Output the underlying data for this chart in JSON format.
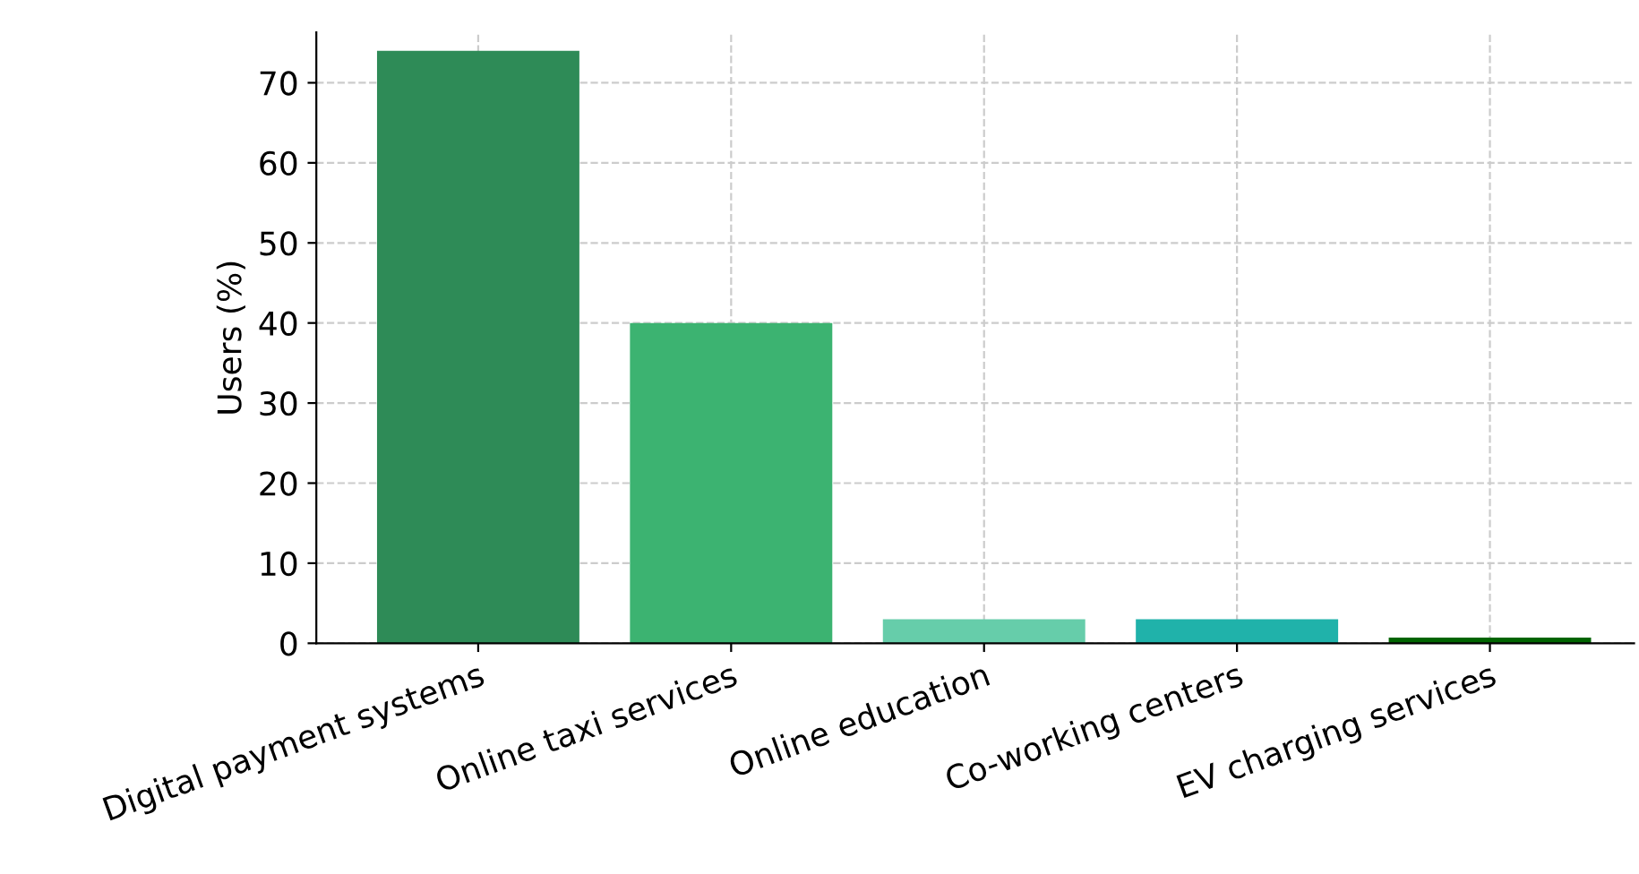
{
  "chart_data": {
    "type": "bar",
    "ylabel": "Users (%)",
    "categories": [
      "Digital payment systems",
      "Online taxi services",
      "Online education",
      "Co-working centers",
      "EV charging services"
    ],
    "values": [
      74,
      40,
      3,
      3,
      0.7
    ],
    "colors": [
      "#2e8b57",
      "#3cb371",
      "#66cdaa",
      "#20b2aa",
      "#006400"
    ],
    "ylim": [
      0,
      76.3
    ],
    "yticks": [
      0,
      10,
      20,
      30,
      40,
      50,
      60,
      70
    ],
    "grid": true
  }
}
